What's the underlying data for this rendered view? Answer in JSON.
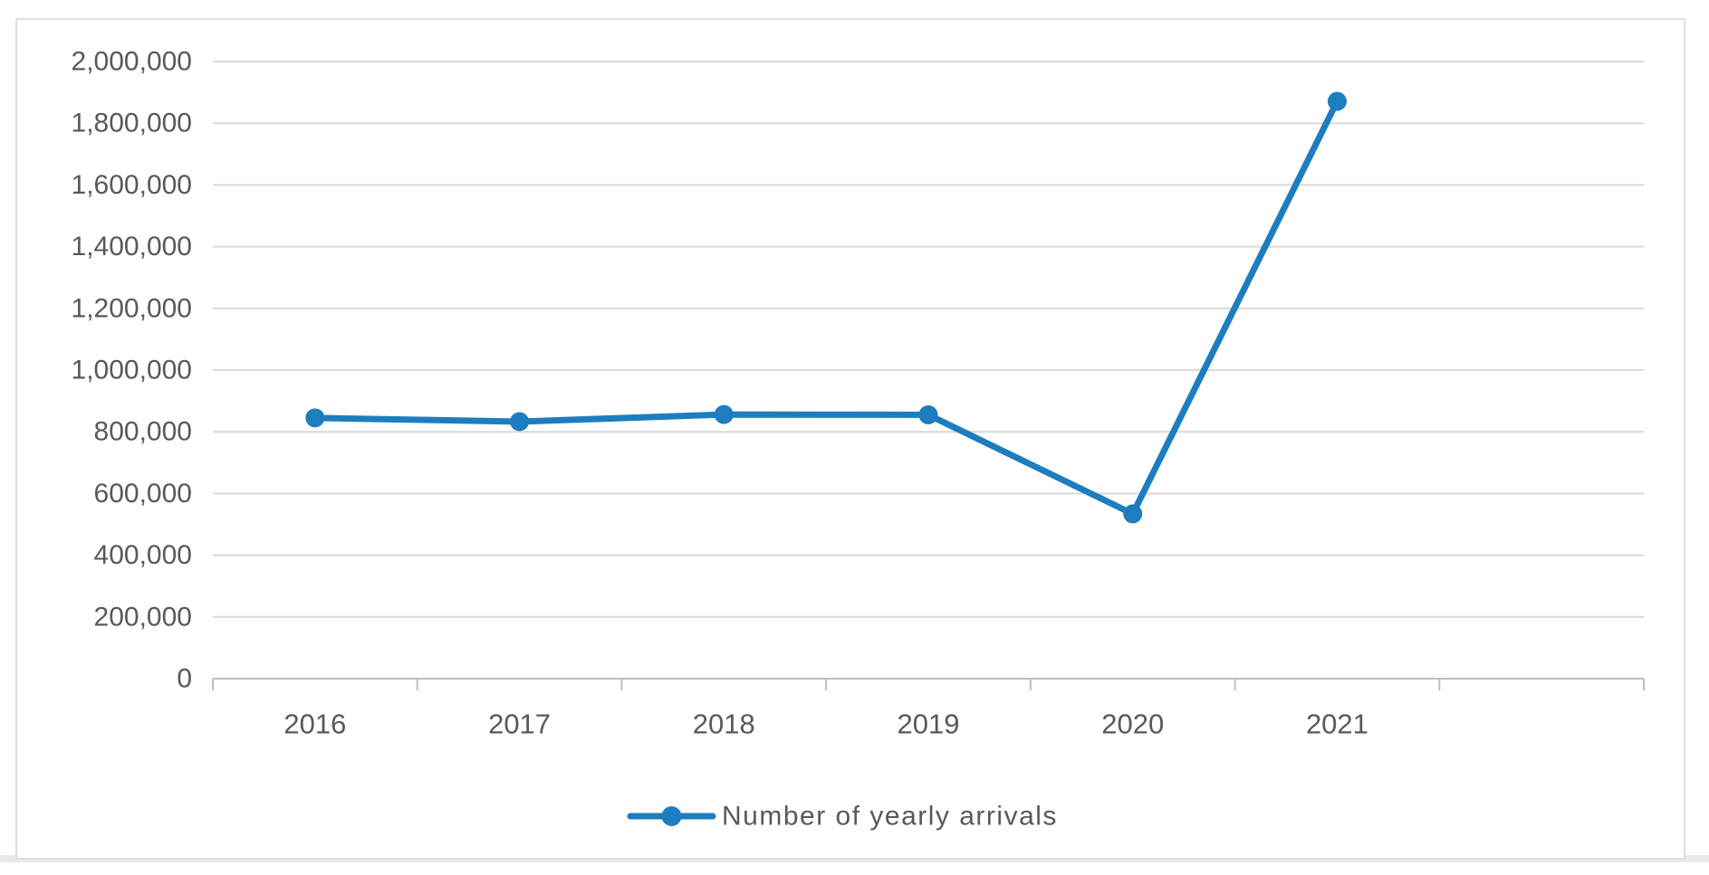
{
  "chart_data": {
    "type": "line",
    "title": "",
    "xlabel": "",
    "ylabel": "",
    "categories": [
      "2016",
      "2017",
      "2018",
      "2019",
      "2020",
      "2021"
    ],
    "series": [
      {
        "name": "Number of yearly arrivals",
        "values": [
          845000,
          833000,
          856000,
          855000,
          534000,
          1871000
        ]
      }
    ],
    "ylim": [
      0,
      2000000
    ],
    "ytick_step": 200000,
    "yticklabels": [
      "0",
      "200,000",
      "400,000",
      "600,000",
      "800,000",
      "1,000,000",
      "1,200,000",
      "1,400,000",
      "1,600,000",
      "1,800,000",
      "2,000,000"
    ],
    "grid": true,
    "legend_position": "bottom",
    "extra_category_slots": 1,
    "marker": "circle",
    "colors": {
      "line": "#1d7dbf",
      "marker": "#1d7dbf",
      "axis_text": "#595959",
      "gridline": "#d9d9d9",
      "axis_line": "#bfbfbf",
      "chart_border": "#dedede",
      "page_edge_strip": "#e9e9e9"
    }
  }
}
